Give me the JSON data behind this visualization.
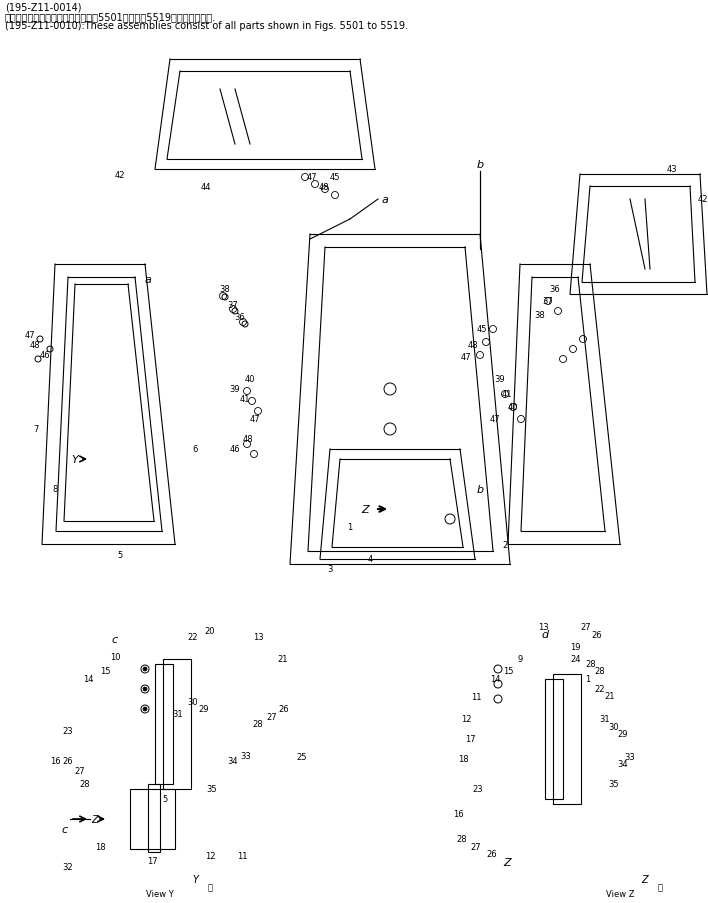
{
  "title_line1": "(195-Z11-0014)",
  "title_line2": "これらのアセンブリの構成部品は第5501図から第5519図まで含みます.",
  "title_line3": "(195-Z11-0010):These assemblies consist of all parts shown in Figs. 5501 to 5519.",
  "bg_color": "#ffffff",
  "line_color": "#000000",
  "text_color": "#000000",
  "font_size_small": 6.5,
  "font_size_label": 6.0
}
